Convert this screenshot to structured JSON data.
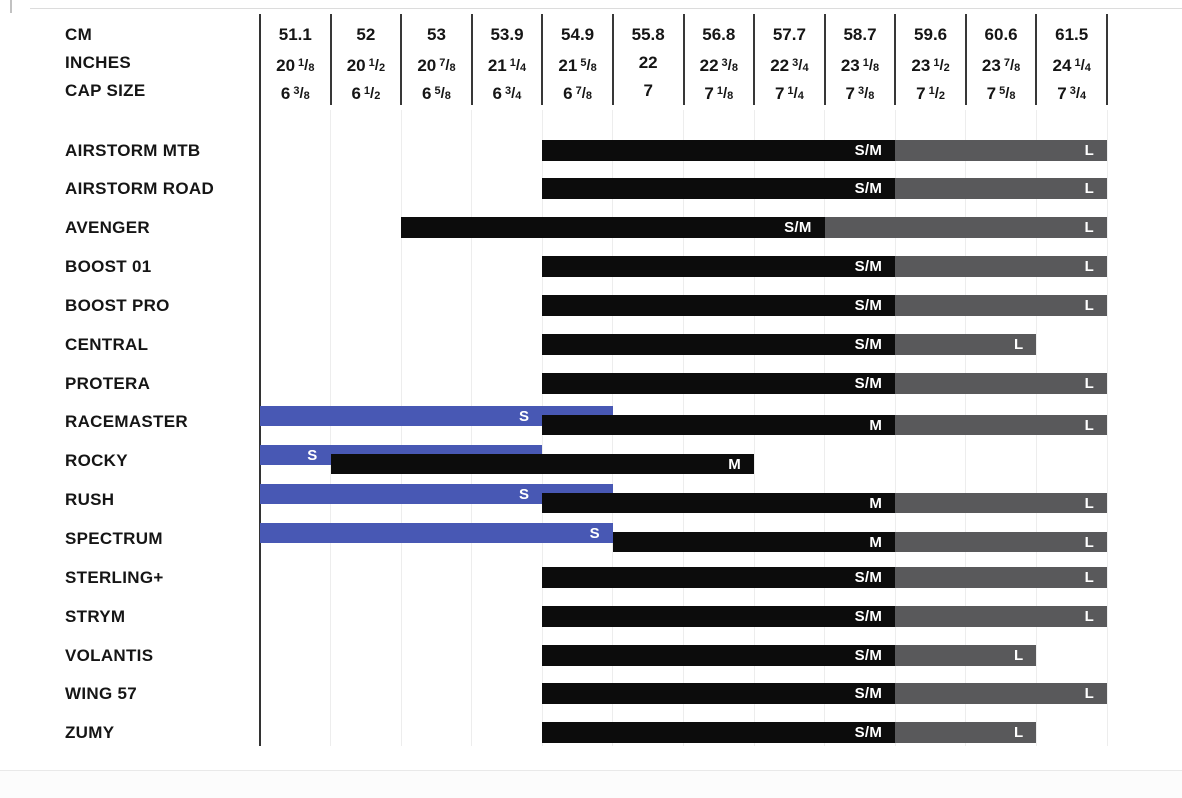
{
  "header": {
    "row_labels": [
      "CM",
      "INCHES",
      "CAP SIZE"
    ],
    "columns": [
      {
        "cm": "51.1",
        "inches": {
          "whole": "20",
          "num": "1",
          "den": "8"
        },
        "cap": {
          "whole": "6",
          "num": "3",
          "den": "8"
        }
      },
      {
        "cm": "52",
        "inches": {
          "whole": "20",
          "num": "1",
          "den": "2"
        },
        "cap": {
          "whole": "6",
          "num": "1",
          "den": "2"
        }
      },
      {
        "cm": "53",
        "inches": {
          "whole": "20",
          "num": "7",
          "den": "8"
        },
        "cap": {
          "whole": "6",
          "num": "5",
          "den": "8"
        }
      },
      {
        "cm": "53.9",
        "inches": {
          "whole": "21",
          "num": "1",
          "den": "4"
        },
        "cap": {
          "whole": "6",
          "num": "3",
          "den": "4"
        }
      },
      {
        "cm": "54.9",
        "inches": {
          "whole": "21",
          "num": "5",
          "den": "8"
        },
        "cap": {
          "whole": "6",
          "num": "7",
          "den": "8"
        }
      },
      {
        "cm": "55.8",
        "inches": {
          "whole": "22",
          "num": "",
          "den": ""
        },
        "cap": {
          "whole": "7",
          "num": "",
          "den": ""
        }
      },
      {
        "cm": "56.8",
        "inches": {
          "whole": "22",
          "num": "3",
          "den": "8"
        },
        "cap": {
          "whole": "7",
          "num": "1",
          "den": "8"
        }
      },
      {
        "cm": "57.7",
        "inches": {
          "whole": "22",
          "num": "3",
          "den": "4"
        },
        "cap": {
          "whole": "7",
          "num": "1",
          "den": "4"
        }
      },
      {
        "cm": "58.7",
        "inches": {
          "whole": "23",
          "num": "1",
          "den": "8"
        },
        "cap": {
          "whole": "7",
          "num": "3",
          "den": "8"
        }
      },
      {
        "cm": "59.6",
        "inches": {
          "whole": "23",
          "num": "1",
          "den": "2"
        },
        "cap": {
          "whole": "7",
          "num": "1",
          "den": "2"
        }
      },
      {
        "cm": "60.6",
        "inches": {
          "whole": "23",
          "num": "7",
          "den": "8"
        },
        "cap": {
          "whole": "7",
          "num": "5",
          "den": "8"
        }
      },
      {
        "cm": "61.5",
        "inches": {
          "whole": "24",
          "num": "1",
          "den": "4"
        },
        "cap": {
          "whole": "7",
          "num": "3",
          "den": "4"
        }
      }
    ]
  },
  "colors": {
    "black": "#0c0c0c",
    "gray": "#59595b",
    "blue": "#4858b4"
  },
  "rows": [
    {
      "label": "AIRSTORM MTB",
      "staggered": false,
      "bars": [
        {
          "color": "black",
          "start": 4,
          "end": 9,
          "label": "S/M"
        },
        {
          "color": "gray",
          "start": 9,
          "end": 12,
          "label": "L"
        }
      ]
    },
    {
      "label": "AIRSTORM ROAD",
      "staggered": false,
      "bars": [
        {
          "color": "black",
          "start": 4,
          "end": 9,
          "label": "S/M"
        },
        {
          "color": "gray",
          "start": 9,
          "end": 12,
          "label": "L"
        }
      ]
    },
    {
      "label": "AVENGER",
      "staggered": false,
      "bars": [
        {
          "color": "black",
          "start": 2,
          "end": 8,
          "label": "S/M"
        },
        {
          "color": "gray",
          "start": 8,
          "end": 12,
          "label": "L"
        }
      ]
    },
    {
      "label": "BOOST 01",
      "staggered": false,
      "bars": [
        {
          "color": "black",
          "start": 4,
          "end": 9,
          "label": "S/M"
        },
        {
          "color": "gray",
          "start": 9,
          "end": 12,
          "label": "L"
        }
      ]
    },
    {
      "label": "BOOST PRO",
      "staggered": false,
      "bars": [
        {
          "color": "black",
          "start": 4,
          "end": 9,
          "label": "S/M"
        },
        {
          "color": "gray",
          "start": 9,
          "end": 12,
          "label": "L"
        }
      ]
    },
    {
      "label": "CENTRAL",
      "staggered": false,
      "bars": [
        {
          "color": "black",
          "start": 4,
          "end": 9,
          "label": "S/M"
        },
        {
          "color": "gray",
          "start": 9,
          "end": 11,
          "label": "L"
        }
      ]
    },
    {
      "label": "PROTERA",
      "staggered": false,
      "bars": [
        {
          "color": "black",
          "start": 4,
          "end": 9,
          "label": "S/M"
        },
        {
          "color": "gray",
          "start": 9,
          "end": 12,
          "label": "L"
        }
      ]
    },
    {
      "label": "RACEMASTER",
      "staggered": true,
      "bars": [
        {
          "color": "blue",
          "start": 0,
          "end": 5,
          "label": "S",
          "label_at": 4
        },
        {
          "color": "black",
          "start": 4,
          "end": 9,
          "label": "M"
        },
        {
          "color": "gray",
          "start": 9,
          "end": 12,
          "label": "L"
        }
      ]
    },
    {
      "label": "ROCKY",
      "staggered": true,
      "bars": [
        {
          "color": "blue",
          "start": 0,
          "end": 4,
          "label": "S",
          "label_at": 1
        },
        {
          "color": "black",
          "start": 1,
          "end": 7,
          "label": "M"
        }
      ]
    },
    {
      "label": "RUSH",
      "staggered": true,
      "bars": [
        {
          "color": "blue",
          "start": 0,
          "end": 5,
          "label": "S",
          "label_at": 4
        },
        {
          "color": "black",
          "start": 4,
          "end": 9,
          "label": "M"
        },
        {
          "color": "gray",
          "start": 9,
          "end": 12,
          "label": "L"
        }
      ]
    },
    {
      "label": "SPECTRUM",
      "staggered": true,
      "bars": [
        {
          "color": "blue",
          "start": 0,
          "end": 5,
          "label": "S",
          "label_at": 5
        },
        {
          "color": "black",
          "start": 5,
          "end": 9,
          "label": "M"
        },
        {
          "color": "gray",
          "start": 9,
          "end": 12,
          "label": "L"
        }
      ]
    },
    {
      "label": "STERLING+",
      "staggered": false,
      "bars": [
        {
          "color": "black",
          "start": 4,
          "end": 9,
          "label": "S/M"
        },
        {
          "color": "gray",
          "start": 9,
          "end": 12,
          "label": "L"
        }
      ]
    },
    {
      "label": "STRYM",
      "staggered": false,
      "bars": [
        {
          "color": "black",
          "start": 4,
          "end": 9,
          "label": "S/M"
        },
        {
          "color": "gray",
          "start": 9,
          "end": 12,
          "label": "L"
        }
      ]
    },
    {
      "label": "VOLANTIS",
      "staggered": false,
      "bars": [
        {
          "color": "black",
          "start": 4,
          "end": 9,
          "label": "S/M"
        },
        {
          "color": "gray",
          "start": 9,
          "end": 11,
          "label": "L"
        }
      ]
    },
    {
      "label": "WING 57",
      "staggered": false,
      "bars": [
        {
          "color": "black",
          "start": 4,
          "end": 9,
          "label": "S/M"
        },
        {
          "color": "gray",
          "start": 9,
          "end": 12,
          "label": "L"
        }
      ]
    },
    {
      "label": "ZUMY",
      "staggered": false,
      "bars": [
        {
          "color": "black",
          "start": 4,
          "end": 9,
          "label": "S/M"
        },
        {
          "color": "gray",
          "start": 9,
          "end": 11,
          "label": "L"
        }
      ]
    }
  ],
  "chart_data": {
    "type": "table",
    "title": "Helmet size chart (head circumference vs model size)",
    "columns_cm": [
      51.1,
      52,
      53,
      53.9,
      54.9,
      55.8,
      56.8,
      57.7,
      58.7,
      59.6,
      60.6,
      61.5
    ],
    "columns_inches": [
      "20 1/8",
      "20 1/2",
      "20 7/8",
      "21 1/4",
      "21 5/8",
      "22",
      "22 3/8",
      "22 3/4",
      "23 1/8",
      "23 1/2",
      "23 7/8",
      "24 1/4"
    ],
    "columns_cap_size": [
      "6 3/8",
      "6 1/2",
      "6 5/8",
      "6 3/4",
      "6 7/8",
      "7",
      "7 1/8",
      "7 1/4",
      "7 3/8",
      "7 1/2",
      "7 5/8",
      "7 3/4"
    ],
    "models": [
      {
        "name": "AIRSTORM MTB",
        "sizes": [
          {
            "size": "S/M",
            "cm_min": 54.9,
            "cm_max": 58.7
          },
          {
            "size": "L",
            "cm_min": 59.6,
            "cm_max": 61.5
          }
        ]
      },
      {
        "name": "AIRSTORM ROAD",
        "sizes": [
          {
            "size": "S/M",
            "cm_min": 54.9,
            "cm_max": 58.7
          },
          {
            "size": "L",
            "cm_min": 59.6,
            "cm_max": 61.5
          }
        ]
      },
      {
        "name": "AVENGER",
        "sizes": [
          {
            "size": "S/M",
            "cm_min": 53,
            "cm_max": 57.7
          },
          {
            "size": "L",
            "cm_min": 58.7,
            "cm_max": 61.5
          }
        ]
      },
      {
        "name": "BOOST 01",
        "sizes": [
          {
            "size": "S/M",
            "cm_min": 54.9,
            "cm_max": 58.7
          },
          {
            "size": "L",
            "cm_min": 59.6,
            "cm_max": 61.5
          }
        ]
      },
      {
        "name": "BOOST PRO",
        "sizes": [
          {
            "size": "S/M",
            "cm_min": 54.9,
            "cm_max": 58.7
          },
          {
            "size": "L",
            "cm_min": 59.6,
            "cm_max": 61.5
          }
        ]
      },
      {
        "name": "CENTRAL",
        "sizes": [
          {
            "size": "S/M",
            "cm_min": 54.9,
            "cm_max": 58.7
          },
          {
            "size": "L",
            "cm_min": 59.6,
            "cm_max": 60.6
          }
        ]
      },
      {
        "name": "PROTERA",
        "sizes": [
          {
            "size": "S/M",
            "cm_min": 54.9,
            "cm_max": 58.7
          },
          {
            "size": "L",
            "cm_min": 59.6,
            "cm_max": 61.5
          }
        ]
      },
      {
        "name": "RACEMASTER",
        "sizes": [
          {
            "size": "S",
            "cm_min": 51.1,
            "cm_max": 54.9
          },
          {
            "size": "M",
            "cm_min": 54.9,
            "cm_max": 58.7
          },
          {
            "size": "L",
            "cm_min": 59.6,
            "cm_max": 61.5
          }
        ]
      },
      {
        "name": "ROCKY",
        "sizes": [
          {
            "size": "S",
            "cm_min": 51.1,
            "cm_max": 53.9
          },
          {
            "size": "M",
            "cm_min": 52,
            "cm_max": 56.8
          }
        ]
      },
      {
        "name": "RUSH",
        "sizes": [
          {
            "size": "S",
            "cm_min": 51.1,
            "cm_max": 54.9
          },
          {
            "size": "M",
            "cm_min": 54.9,
            "cm_max": 58.7
          },
          {
            "size": "L",
            "cm_min": 59.6,
            "cm_max": 61.5
          }
        ]
      },
      {
        "name": "SPECTRUM",
        "sizes": [
          {
            "size": "S",
            "cm_min": 51.1,
            "cm_max": 54.9
          },
          {
            "size": "M",
            "cm_min": 55.8,
            "cm_max": 58.7
          },
          {
            "size": "L",
            "cm_min": 59.6,
            "cm_max": 61.5
          }
        ]
      },
      {
        "name": "STERLING+",
        "sizes": [
          {
            "size": "S/M",
            "cm_min": 54.9,
            "cm_max": 58.7
          },
          {
            "size": "L",
            "cm_min": 59.6,
            "cm_max": 61.5
          }
        ]
      },
      {
        "name": "STRYM",
        "sizes": [
          {
            "size": "S/M",
            "cm_min": 54.9,
            "cm_max": 58.7
          },
          {
            "size": "L",
            "cm_min": 59.6,
            "cm_max": 61.5
          }
        ]
      },
      {
        "name": "VOLANTIS",
        "sizes": [
          {
            "size": "S/M",
            "cm_min": 54.9,
            "cm_max": 58.7
          },
          {
            "size": "L",
            "cm_min": 59.6,
            "cm_max": 60.6
          }
        ]
      },
      {
        "name": "WING 57",
        "sizes": [
          {
            "size": "S/M",
            "cm_min": 54.9,
            "cm_max": 58.7
          },
          {
            "size": "L",
            "cm_min": 59.6,
            "cm_max": 61.5
          }
        ]
      },
      {
        "name": "ZUMY",
        "sizes": [
          {
            "size": "S/M",
            "cm_min": 54.9,
            "cm_max": 58.7
          },
          {
            "size": "L",
            "cm_min": 59.6,
            "cm_max": 60.6
          }
        ]
      }
    ]
  }
}
